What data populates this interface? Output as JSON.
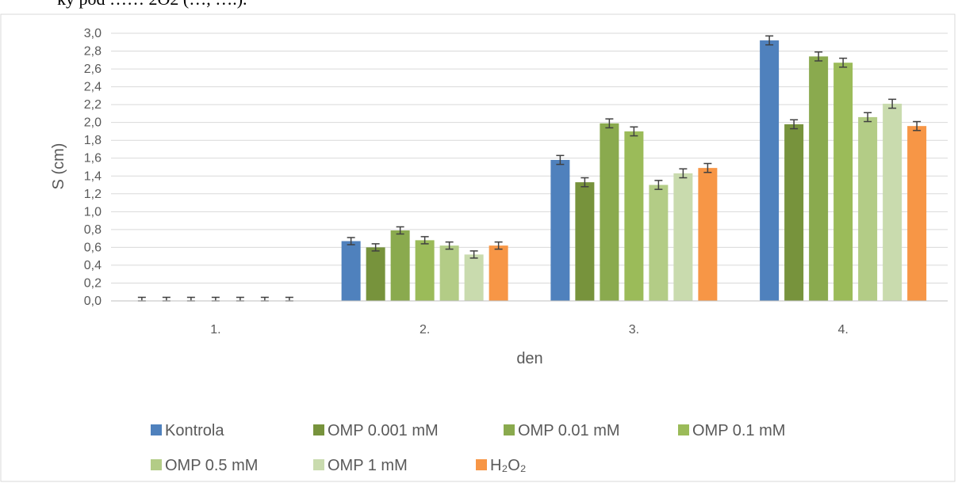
{
  "header_fragment": "ky pod …… 2O2 (…, ….).",
  "chart_data": {
    "type": "bar",
    "xlabel": "den",
    "ylabel": "S (cm)",
    "ylim": [
      0,
      3.0
    ],
    "y_tick_step": 0.2,
    "y_tick_labels": [
      "0,0",
      "0,2",
      "0,4",
      "0,6",
      "0,8",
      "1,0",
      "1,2",
      "1,4",
      "1,6",
      "1,8",
      "2,0",
      "2,2",
      "2,4",
      "2,6",
      "2,8",
      "3,0"
    ],
    "grid": true,
    "legend_position": "bottom",
    "error_bars": true,
    "categories": [
      "1.",
      "2.",
      "3.",
      "4."
    ],
    "series": [
      {
        "name": "Kontrola",
        "color": "#4F81BD",
        "values": [
          0,
          0.67,
          1.58,
          2.92
        ],
        "errors": [
          0.04,
          0.04,
          0.05,
          0.05
        ]
      },
      {
        "name": "OMP 0.001 mM",
        "color": "#77933C",
        "values": [
          0,
          0.6,
          1.33,
          1.98
        ],
        "errors": [
          0.04,
          0.04,
          0.05,
          0.05
        ]
      },
      {
        "name": "OMP 0.01 mM",
        "color": "#8AAA4E",
        "values": [
          0,
          0.79,
          1.99,
          2.74
        ],
        "errors": [
          0.04,
          0.04,
          0.05,
          0.05
        ]
      },
      {
        "name": "OMP 0.1 mM",
        "color": "#9BBB59",
        "values": [
          0,
          0.68,
          1.9,
          2.67
        ],
        "errors": [
          0.04,
          0.04,
          0.05,
          0.05
        ]
      },
      {
        "name": "OMP 0.5 mM",
        "color": "#B3CC86",
        "values": [
          0,
          0.62,
          1.3,
          2.06
        ],
        "errors": [
          0.04,
          0.04,
          0.05,
          0.05
        ]
      },
      {
        "name": "OMP 1 mM",
        "color": "#C9DBAE",
        "values": [
          0,
          0.52,
          1.43,
          2.21
        ],
        "errors": [
          0.04,
          0.04,
          0.05,
          0.05
        ]
      },
      {
        "name": "H₂O₂",
        "color": "#F79646",
        "values": [
          0,
          0.62,
          1.49,
          1.96
        ],
        "errors": [
          0.04,
          0.04,
          0.05,
          0.05
        ]
      }
    ]
  }
}
